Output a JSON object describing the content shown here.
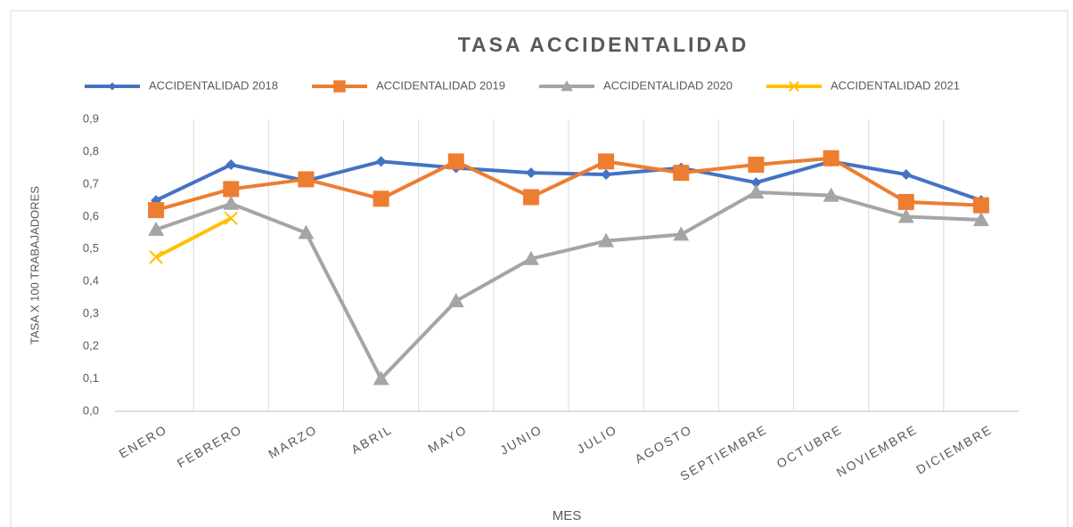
{
  "chart_data": {
    "type": "line",
    "title": "TASA ACCIDENTALIDAD",
    "x_label": "MES",
    "y_label": "TASA X 100 TRABAJADORES",
    "categories": [
      "ENERO",
      "FEBRERO",
      "MARZO",
      "ABRIL",
      "MAYO",
      "JUNIO",
      "JULIO",
      "AGOSTO",
      "SEPTIEMBRE",
      "OCTUBRE",
      "NOVIEMBRE",
      "DICIEMBRE"
    ],
    "series": [
      {
        "name": "ACCIDENTALIDAD 2018",
        "color": "#4472c4",
        "marker": "diamond",
        "values": [
          0.65,
          0.76,
          0.71,
          0.77,
          0.75,
          0.735,
          0.73,
          0.75,
          0.705,
          0.77,
          0.73,
          0.65
        ]
      },
      {
        "name": "ACCIDENTALIDAD 2019",
        "color": "#ed7d31",
        "marker": "square",
        "values": [
          0.62,
          0.685,
          0.715,
          0.655,
          0.77,
          0.66,
          0.77,
          0.735,
          0.76,
          0.78,
          0.645,
          0.635
        ]
      },
      {
        "name": "ACCIDENTALIDAD 2020",
        "color": "#a5a5a5",
        "marker": "triangle",
        "values": [
          0.56,
          0.64,
          0.55,
          0.1,
          0.34,
          0.47,
          0.525,
          0.545,
          0.675,
          0.665,
          0.6,
          0.59
        ]
      },
      {
        "name": "ACCIDENTALIDAD 2021",
        "color": "#ffc000",
        "marker": "x",
        "values": [
          0.475,
          0.595,
          null,
          null,
          null,
          null,
          null,
          null,
          null,
          null,
          null,
          null
        ]
      }
    ],
    "ylim": [
      0,
      0.9
    ],
    "yticks": [
      {
        "value": 0,
        "label": "0,0"
      },
      {
        "value": 0.1,
        "label": "0,1"
      },
      {
        "value": 0.2,
        "label": "0,2"
      },
      {
        "value": 0.3,
        "label": "0,3"
      },
      {
        "value": 0.4,
        "label": "0,4"
      },
      {
        "value": 0.5,
        "label": "0,5"
      },
      {
        "value": 0.6,
        "label": "0,6"
      },
      {
        "value": 0.7,
        "label": "0,7"
      },
      {
        "value": 0.8,
        "label": "0,8"
      },
      {
        "value": 0.9,
        "label": "0,9"
      }
    ],
    "grid": true,
    "legend": "top"
  }
}
